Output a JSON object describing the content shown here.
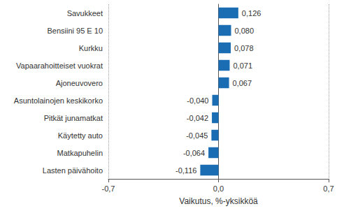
{
  "chart_data": {
    "type": "bar",
    "orientation": "horizontal",
    "x_label": "Vaikutus, %-yksikköä",
    "categories": [
      "Savukkeet",
      "Bensiini 95 E 10",
      "Kurkku",
      "Vapaarahoitteiset vuokrat",
      "Ajoneuvovero",
      "Asuntolainojen keskikorko",
      "Pitkät junamatkat",
      "Käytetty auto",
      "Matkapuhelin",
      "Lasten päivähoito"
    ],
    "values": [
      0.126,
      0.08,
      0.078,
      0.071,
      0.067,
      -0.04,
      -0.042,
      -0.045,
      -0.064,
      -0.116
    ],
    "value_labels": [
      "0,126",
      "0,080",
      "0,078",
      "0,071",
      "0,067",
      "-0,040",
      "-0,042",
      "-0,045",
      "-0,064",
      "-0,116"
    ],
    "data_labels": true,
    "color": "#1a6db3",
    "xlim": [
      -0.7,
      0.7
    ],
    "xticks": [
      {
        "value": -0.7,
        "label": "-0,7"
      },
      {
        "value": 0,
        "label": "0,0"
      },
      {
        "value": 0.7,
        "label": "0,7"
      }
    ],
    "grid": true
  }
}
